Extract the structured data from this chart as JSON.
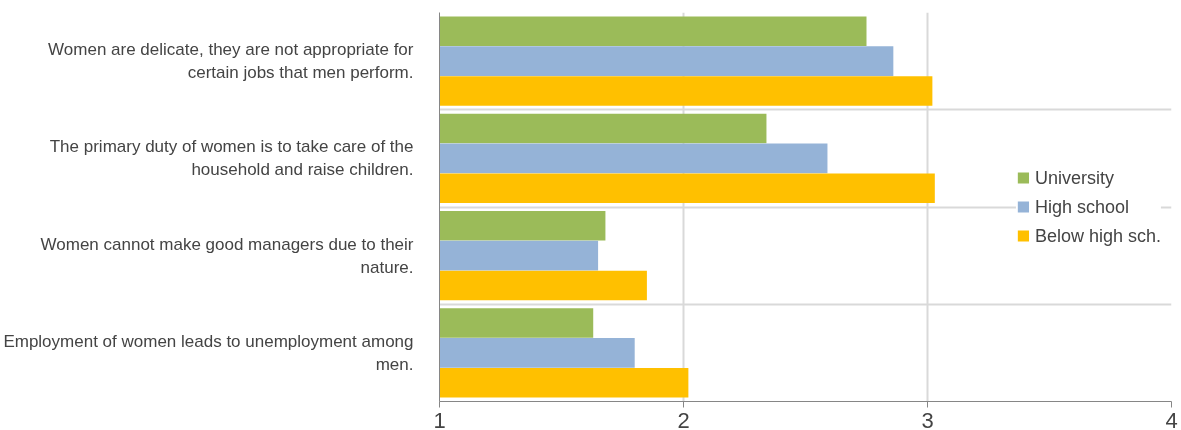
{
  "chart_data": {
    "type": "bar",
    "orientation": "horizontal",
    "categories": [
      "Women are delicate, they are not appropriate for certain jobs that men perform.",
      "The primary duty of women is to take care of the household and raise children.",
      "Women cannot make good managers due to their nature.",
      "Employment of women leads to unemployment among men."
    ],
    "series": [
      {
        "name": "University",
        "color": "#9bbb59",
        "values": [
          2.75,
          2.34,
          1.68,
          1.63
        ]
      },
      {
        "name": "High school",
        "color": "#95b3d7",
        "values": [
          2.86,
          2.59,
          1.65,
          1.8
        ]
      },
      {
        "name": "Below high sch.",
        "color": "#ffc000",
        "values": [
          3.02,
          3.03,
          1.85,
          2.02
        ]
      }
    ],
    "xlim": [
      1,
      4
    ],
    "xticks": [
      1,
      2,
      3,
      4
    ],
    "grid": true,
    "legend": "right"
  }
}
